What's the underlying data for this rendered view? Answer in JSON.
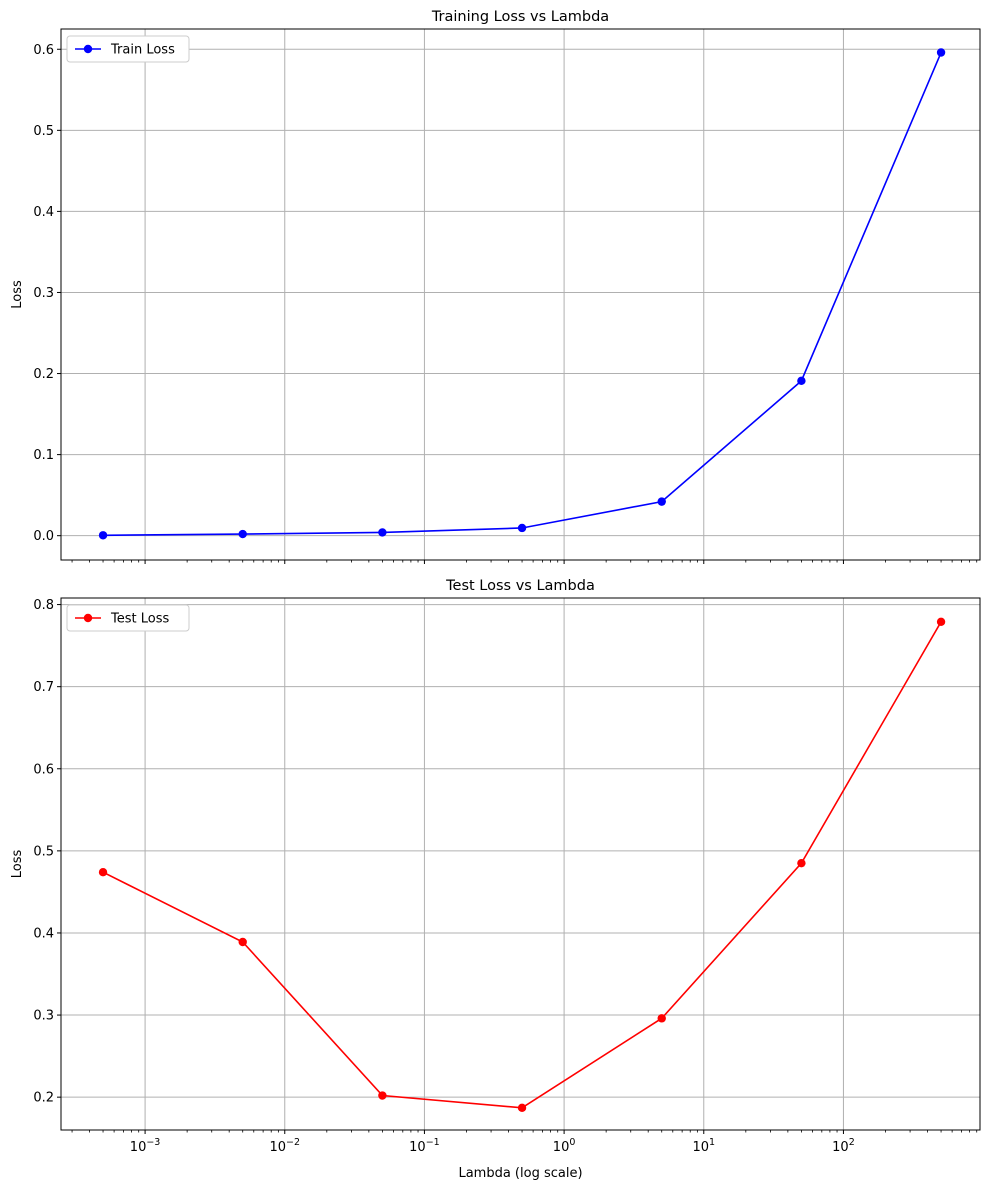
{
  "chart_data": [
    {
      "type": "line",
      "title": "Training Loss vs Lambda",
      "xlabel": "",
      "ylabel": "Loss",
      "xscale": "log",
      "xlim": [
        0.00025,
        950
      ],
      "ylim": [
        -0.03,
        0.625
      ],
      "x_tick_values": [
        0.001,
        0.01,
        0.1,
        1,
        10,
        100
      ],
      "x_tick_labels_visible": false,
      "y_ticks": [
        0.0,
        0.1,
        0.2,
        0.3,
        0.4,
        0.5,
        0.6
      ],
      "y_tick_labels": [
        "0.0",
        "0.1",
        "0.2",
        "0.3",
        "0.4",
        "0.5",
        "0.6"
      ],
      "grid": true,
      "legend_position": "upper-left",
      "series": [
        {
          "name": "Train Loss",
          "color": "#0000ff",
          "marker": "circle",
          "x": [
            0.0005,
            0.005,
            0.05,
            0.5,
            5,
            50,
            500
          ],
          "y": [
            0.0005,
            0.002,
            0.004,
            0.0095,
            0.042,
            0.191,
            0.596
          ]
        }
      ]
    },
    {
      "type": "line",
      "title": "Test Loss vs Lambda",
      "xlabel": "Lambda (log scale)",
      "ylabel": "Loss",
      "xscale": "log",
      "xlim": [
        0.00025,
        950
      ],
      "ylim": [
        0.16,
        0.808
      ],
      "x_tick_values": [
        0.001,
        0.01,
        0.1,
        1,
        10,
        100
      ],
      "x_tick_labels_visible": true,
      "x_tick_labels": [
        {
          "base": "10",
          "exp": "−3"
        },
        {
          "base": "10",
          "exp": "−2"
        },
        {
          "base": "10",
          "exp": "−1"
        },
        {
          "base": "10",
          "exp": "0"
        },
        {
          "base": "10",
          "exp": "1"
        },
        {
          "base": "10",
          "exp": "2"
        }
      ],
      "y_ticks": [
        0.2,
        0.3,
        0.4,
        0.5,
        0.6,
        0.7,
        0.8
      ],
      "y_tick_labels": [
        "0.2",
        "0.3",
        "0.4",
        "0.5",
        "0.6",
        "0.7",
        "0.8"
      ],
      "grid": true,
      "legend_position": "upper-left",
      "series": [
        {
          "name": "Test Loss",
          "color": "#ff0000",
          "marker": "circle",
          "x": [
            0.0005,
            0.005,
            0.05,
            0.5,
            5,
            50,
            500
          ],
          "y": [
            0.474,
            0.389,
            0.202,
            0.187,
            0.296,
            0.485,
            0.779
          ]
        }
      ]
    }
  ]
}
